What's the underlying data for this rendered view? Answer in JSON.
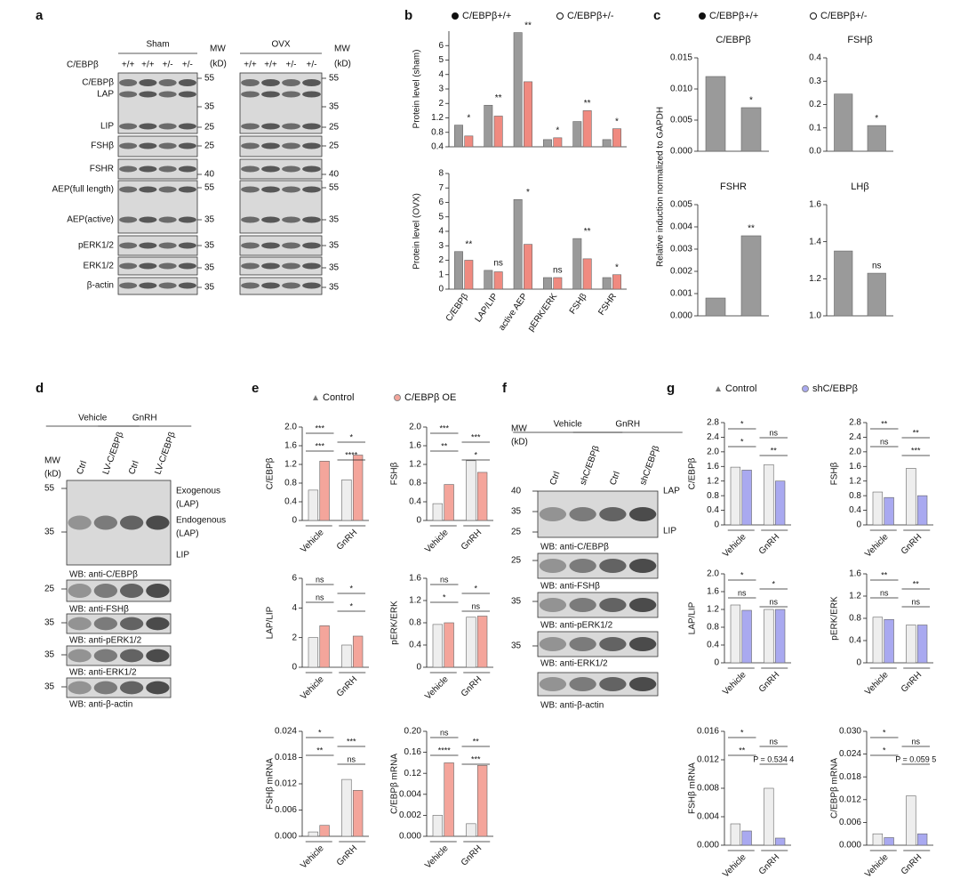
{
  "panel_labels": [
    "a",
    "b",
    "c",
    "d",
    "e",
    "f",
    "g"
  ],
  "blots": {
    "a": {
      "groups": [
        "Sham",
        "OVX"
      ],
      "mw_header": "MW",
      "mw_unit": "(kD)",
      "genotype_label": "C/EBPβ",
      "genotypes": [
        "+/+",
        "+/+",
        "+/-",
        "+/-"
      ],
      "rows": [
        {
          "labels": [
            "C/EBPβ",
            "LAP",
            "LIP"
          ],
          "mw": [
            55,
            35,
            25
          ]
        },
        {
          "labels": [
            "FSHβ"
          ],
          "mw": [
            25
          ]
        },
        {
          "labels": [
            "FSHR"
          ],
          "mw": [
            40
          ]
        },
        {
          "labels": [
            "AEP(full length)",
            "AEP(active)"
          ],
          "mw": [
            55,
            35
          ]
        },
        {
          "labels": [
            "pERK1/2"
          ],
          "mw": [
            35
          ]
        },
        {
          "labels": [
            "ERK1/2"
          ],
          "mw": [
            35
          ]
        },
        {
          "labels": [
            "β-actin"
          ],
          "mw": [
            35
          ]
        }
      ]
    },
    "d": {
      "groups": [
        "Vehicle",
        "GnRH"
      ],
      "mw_header": "MW",
      "mw_unit": "(kD)",
      "lanes": [
        "Ctrl",
        "LV-C/EBPβ",
        "Ctrl",
        "LV-C/EBPβ"
      ],
      "rows": [
        {
          "mw": [
            55,
            35
          ],
          "right_labels": [
            "Exogenous",
            "(LAP)",
            "Endogenous",
            "(LAP)",
            "LIP"
          ],
          "caption": "WB: anti-C/EBPβ"
        },
        {
          "mw": [
            25
          ],
          "caption": "WB: anti-FSHβ"
        },
        {
          "mw": [
            35
          ],
          "caption": "WB: anti-pERK1/2"
        },
        {
          "mw": [
            35
          ],
          "caption": "WB: anti-ERK1/2"
        },
        {
          "mw": [
            35
          ],
          "caption": "WB: anti-β-actin"
        }
      ]
    },
    "f": {
      "groups": [
        "Vehicle",
        "GnRH"
      ],
      "mw_header": "MW",
      "mw_unit": "(kD)",
      "lanes": [
        "Ctrl",
        "shC/EBPβ",
        "Ctrl",
        "shC/EBPβ"
      ],
      "rows": [
        {
          "mw": [
            40,
            35,
            25
          ],
          "right_labels": [
            "LAP",
            "LIP"
          ],
          "caption": "WB: anti-C/EBPβ"
        },
        {
          "mw": [
            25
          ],
          "caption": "WB: anti-FSHβ"
        },
        {
          "mw": [
            35
          ],
          "caption": "WB: anti-pERK1/2"
        },
        {
          "mw": [
            35
          ],
          "caption": "WB: anti-ERK1/2"
        },
        {
          "caption": "WB: anti-β-actin"
        }
      ]
    }
  },
  "chart_data": [
    {
      "type": "bar",
      "ylabel": "Protein level (sham)",
      "axis_break": true,
      "categories": [
        null,
        null,
        null,
        null,
        null,
        null
      ],
      "series": [
        {
          "name": "C/EBPβ+/+",
          "color": "#9a9a9a",
          "values": [
            1.0,
            1.9,
            6.9,
            0.6,
            1.1,
            0.6
          ]
        },
        {
          "name": "C/EBPβ+/-",
          "color": "#f08a80",
          "values": [
            0.7,
            1.3,
            3.5,
            0.65,
            1.6,
            0.9
          ]
        }
      ],
      "ylim": [
        0.4,
        7
      ],
      "yticks": [
        0.4,
        0.8,
        1.2,
        2,
        3,
        4,
        5,
        6
      ],
      "annotations": [
        "*",
        "**",
        "**",
        "*",
        "**",
        "*"
      ]
    },
    {
      "type": "bar",
      "ylabel": "Protein level (OVX)",
      "categories": [
        "C/EBPβ",
        "LAP/LIP",
        "active AEP",
        "pERK/ERK",
        "FSHβ",
        "FSHR"
      ],
      "series": [
        {
          "color": "#9a9a9a",
          "values": [
            2.6,
            1.3,
            6.2,
            0.8,
            3.5,
            0.8
          ]
        },
        {
          "color": "#f08a80",
          "values": [
            2.0,
            1.2,
            3.1,
            0.8,
            2.1,
            1.0
          ]
        }
      ],
      "ylim": [
        0,
        8
      ],
      "yticks": [
        0,
        1,
        2,
        3,
        4,
        5,
        6,
        7,
        8
      ],
      "annotations": [
        "**",
        "ns",
        "*",
        "ns",
        "**",
        "*"
      ]
    },
    {
      "type": "bar",
      "title": "C/EBPβ",
      "ylabel": "Relative induction normalized to GAPDH",
      "legend": [
        "C/EBPβ+/+",
        "C/EBPβ+/-"
      ],
      "categories": [
        null,
        null
      ],
      "series": [
        {
          "color": "#9a9a9a",
          "values": [
            0.012,
            0.007
          ]
        }
      ],
      "ylim": [
        0,
        0.015
      ],
      "yticks": [
        {
          "value": 0,
          "label": "0.000"
        },
        0.005,
        {
          "value": 0.01,
          "label": "0.010"
        },
        0.015
      ],
      "annotations": [
        "*"
      ]
    },
    {
      "type": "bar",
      "title": "FSHβ",
      "categories": [
        null,
        null
      ],
      "series": [
        {
          "color": "#9a9a9a",
          "values": [
            0.245,
            0.11
          ]
        }
      ],
      "ylim": [
        0,
        0.4
      ],
      "yticks": [
        {
          "value": 0,
          "label": "0.0"
        },
        0.1,
        0.2,
        0.3,
        0.4
      ],
      "annotations": [
        "*"
      ]
    },
    {
      "type": "bar",
      "title": "FSHR",
      "categories": [
        null,
        null
      ],
      "series": [
        {
          "color": "#9a9a9a",
          "values": [
            0.0008,
            0.0036
          ]
        }
      ],
      "ylim": [
        0,
        0.005
      ],
      "yticks": [
        {
          "value": 0,
          "label": "0.000"
        },
        0.001,
        0.002,
        0.003,
        0.004,
        0.005
      ],
      "annotations": [
        "**"
      ]
    },
    {
      "type": "bar",
      "title": "LHβ",
      "categories": [
        null,
        null
      ],
      "series": [
        {
          "color": "#9a9a9a",
          "values": [
            1.35,
            1.23
          ]
        }
      ],
      "ylim": [
        1,
        1.6
      ],
      "yticks": [
        {
          "value": 1,
          "label": "1.0"
        },
        1.2,
        1.4,
        1.6
      ],
      "annotations": [
        "ns"
      ]
    },
    {
      "type": "bar",
      "ylabel": "C/EBPβ",
      "categories": [
        "Vehicle",
        "GnRH"
      ],
      "series": [
        {
          "name": "Control",
          "color": "#eeeeee",
          "values": [
            0.65,
            0.87
          ]
        },
        {
          "name": "C/EBPβ OE",
          "color": "#f4a59b",
          "values": [
            1.27,
            1.4
          ]
        }
      ],
      "ylim": [
        0,
        2
      ],
      "yticks": [
        0,
        0.4,
        0.8,
        1.2,
        1.6,
        {
          "value": 2,
          "label": "2.0"
        }
      ],
      "annotations": [
        "***",
        "*",
        "***",
        "****"
      ]
    },
    {
      "type": "bar",
      "ylabel": "FSHβ",
      "categories": [
        "Vehicle",
        "GnRH"
      ],
      "series": [
        {
          "color": "#eeeeee",
          "values": [
            0.36,
            1.28
          ]
        },
        {
          "color": "#f4a59b",
          "values": [
            0.77,
            1.03
          ]
        }
      ],
      "ylim": [
        0,
        2
      ],
      "yticks": [
        0,
        0.4,
        0.8,
        1.2,
        1.6,
        {
          "value": 2,
          "label": "2.0"
        }
      ],
      "annotations": [
        "***",
        "***",
        "**",
        "*"
      ]
    },
    {
      "type": "bar",
      "ylabel": "LAP/LIP",
      "categories": [
        "Vehicle",
        "GnRH"
      ],
      "series": [
        {
          "color": "#eeeeee",
          "values": [
            2.0,
            1.5
          ]
        },
        {
          "color": "#f4a59b",
          "values": [
            2.8,
            2.1
          ]
        }
      ],
      "ylim": [
        0,
        6
      ],
      "yticks": [
        0,
        2,
        4,
        6
      ],
      "annotations": [
        "ns",
        "*",
        "ns",
        "*"
      ]
    },
    {
      "type": "bar",
      "ylabel": "pERK/ERK",
      "categories": [
        "Vehicle",
        "GnRH"
      ],
      "series": [
        {
          "color": "#eeeeee",
          "values": [
            0.77,
            0.9
          ]
        },
        {
          "color": "#f4a59b",
          "values": [
            0.8,
            0.92
          ]
        }
      ],
      "ylim": [
        0,
        1.6
      ],
      "yticks": [
        0,
        0.4,
        0.8,
        1.2,
        1.6
      ],
      "annotations": [
        "ns",
        "*",
        "*",
        "ns"
      ]
    },
    {
      "type": "bar",
      "ylabel": "FSHβ mRNA",
      "categories": [
        "Vehicle",
        "GnRH"
      ],
      "series": [
        {
          "color": "#eeeeee",
          "values": [
            0.001,
            0.013
          ]
        },
        {
          "color": "#f4a59b",
          "values": [
            0.0025,
            0.0105
          ]
        }
      ],
      "ylim": [
        0,
        0.024
      ],
      "yticks": [
        {
          "value": 0,
          "label": "0.000"
        },
        0.006,
        0.012,
        0.018,
        0.024
      ],
      "annotations": [
        "*",
        "***",
        "**",
        "ns"
      ]
    },
    {
      "type": "bar",
      "ylabel": "C/EBPβ mRNA",
      "axis_break": true,
      "categories": [
        "Vehicle",
        "GnRH"
      ],
      "series": [
        {
          "color": "#eeeeee",
          "values": [
            0.002,
            0.0012
          ]
        },
        {
          "color": "#f4a59b",
          "values": [
            0.14,
            0.135
          ]
        }
      ],
      "ylim": [
        0,
        0.2
      ],
      "yticks": [
        {
          "value": 0,
          "label": "0.000"
        },
        0.002,
        0.004,
        0.12,
        0.16,
        {
          "value": 0.2,
          "label": "0.20"
        }
      ],
      "annotations": [
        "ns",
        "**",
        "****",
        "***"
      ]
    },
    {
      "type": "bar",
      "ylabel": "C/EBPβ",
      "categories": [
        "Vehicle",
        "GnRH"
      ],
      "series": [
        {
          "name": "Control",
          "color": "#eeeeee",
          "values": [
            1.58,
            1.65
          ]
        },
        {
          "name": "shC/EBPβ",
          "color": "#a9a9f0",
          "values": [
            1.5,
            1.2
          ]
        }
      ],
      "ylim": [
        0,
        2.8
      ],
      "yticks": [
        0,
        0.4,
        0.8,
        1.2,
        1.6,
        {
          "value": 2,
          "label": "2.0"
        },
        2.4,
        2.8
      ],
      "annotations": [
        "*",
        "ns",
        "*",
        "**"
      ]
    },
    {
      "type": "bar",
      "ylabel": "FSHβ",
      "categories": [
        "Vehicle",
        "GnRH"
      ],
      "series": [
        {
          "color": "#eeeeee",
          "values": [
            0.9,
            1.55
          ]
        },
        {
          "color": "#a9a9f0",
          "values": [
            0.75,
            0.8
          ]
        }
      ],
      "ylim": [
        0,
        2.8
      ],
      "yticks": [
        0,
        0.4,
        0.8,
        1.2,
        1.6,
        {
          "value": 2,
          "label": "2.0"
        },
        2.4,
        2.8
      ],
      "annotations": [
        "**",
        "**",
        "ns",
        "***"
      ]
    },
    {
      "type": "bar",
      "ylabel": "LAP/LIP",
      "categories": [
        "Vehicle",
        "GnRH"
      ],
      "series": [
        {
          "color": "#eeeeee",
          "values": [
            1.3,
            1.2
          ]
        },
        {
          "color": "#a9a9f0",
          "values": [
            1.18,
            1.2
          ]
        }
      ],
      "ylim": [
        0,
        2
      ],
      "yticks": [
        0,
        0.4,
        0.8,
        1.2,
        1.6,
        {
          "value": 2,
          "label": "2.0"
        }
      ],
      "annotations": [
        "*",
        "*",
        "ns",
        "ns"
      ]
    },
    {
      "type": "bar",
      "ylabel": "pERK/ERK",
      "categories": [
        "Vehicle",
        "GnRH"
      ],
      "series": [
        {
          "color": "#eeeeee",
          "values": [
            0.82,
            0.68
          ]
        },
        {
          "color": "#a9a9f0",
          "values": [
            0.78,
            0.68
          ]
        }
      ],
      "ylim": [
        0,
        1.6
      ],
      "yticks": [
        0,
        0.4,
        0.8,
        1.2,
        1.6
      ],
      "annotations": [
        "**",
        "**",
        "ns",
        "ns"
      ]
    },
    {
      "type": "bar",
      "ylabel": "FSHβ mRNA",
      "categories": [
        "Vehicle",
        "GnRH"
      ],
      "series": [
        {
          "color": "#eeeeee",
          "values": [
            0.003,
            0.008
          ]
        },
        {
          "color": "#a9a9f0",
          "values": [
            0.002,
            0.001
          ]
        }
      ],
      "ylim": [
        0,
        0.016
      ],
      "yticks": [
        {
          "value": 0,
          "label": "0.000"
        },
        0.004,
        0.008,
        0.012,
        0.016
      ],
      "annotations": [
        "*",
        "ns",
        "**",
        "P = 0.534 4"
      ]
    },
    {
      "type": "bar",
      "ylabel": "C/EBPβ mRNA",
      "categories": [
        "Vehicle",
        "GnRH"
      ],
      "series": [
        {
          "color": "#eeeeee",
          "values": [
            0.003,
            0.013
          ]
        },
        {
          "color": "#a9a9f0",
          "values": [
            0.002,
            0.003
          ]
        }
      ],
      "ylim": [
        0,
        0.03
      ],
      "yticks": [
        {
          "value": 0,
          "label": "0.000"
        },
        0.006,
        0.012,
        0.018,
        0.024,
        {
          "value": 0.03,
          "label": "0.030"
        }
      ],
      "annotations": [
        "*",
        "ns",
        "*",
        "P = 0.059 5"
      ]
    }
  ]
}
